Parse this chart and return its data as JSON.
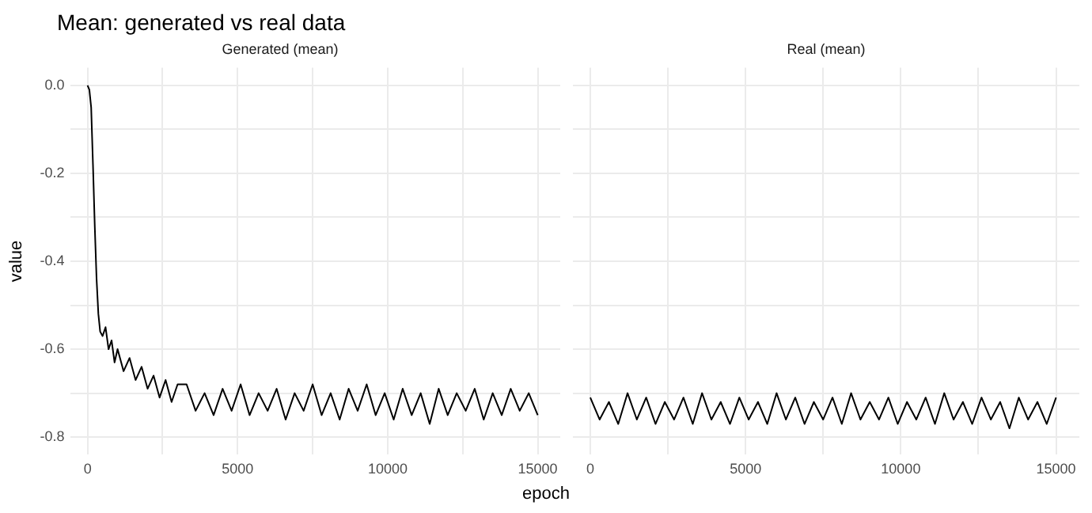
{
  "chart_data": [
    {
      "type": "line",
      "title": "Mean: generated vs real data",
      "subtitle": "Generated (mean)",
      "xlabel": "epoch",
      "ylabel": "value",
      "xlim": [
        -560,
        15750
      ],
      "ylim": [
        -0.84,
        0.04
      ],
      "xticks": [
        0,
        {
          "value": 2500,
          "label": null
        },
        5000,
        {
          "value": 7500,
          "label": null
        },
        10000,
        {
          "value": 12500,
          "label": null
        },
        15000
      ],
      "yticks": [
        {
          "value": -0.8,
          "label": "-0.8"
        },
        {
          "value": -0.7,
          "label": null
        },
        {
          "value": -0.6,
          "label": "-0.6"
        },
        {
          "value": -0.5,
          "label": null
        },
        {
          "value": -0.4,
          "label": "-0.4"
        },
        {
          "value": -0.3,
          "label": null
        },
        {
          "value": -0.2,
          "label": "-0.2"
        },
        {
          "value": -0.1,
          "label": null
        },
        {
          "value": 0,
          "label": "0.0"
        }
      ],
      "grid": true,
      "series": [
        {
          "color": "#000000",
          "x": [
            0,
            60,
            120,
            180,
            240,
            300,
            360,
            420,
            500,
            600,
            700,
            800,
            900,
            1000,
            1200,
            1400,
            1600,
            1800,
            2000,
            2200,
            2400,
            2600,
            2800,
            3000,
            3300,
            3600,
            3900,
            4200,
            4500,
            4800,
            5100,
            5400,
            5700,
            6000,
            6300,
            6600,
            6900,
            7200,
            7500,
            7800,
            8100,
            8400,
            8700,
            9000,
            9300,
            9600,
            9900,
            10200,
            10500,
            10800,
            11100,
            11400,
            11700,
            12000,
            12300,
            12600,
            12900,
            13200,
            13500,
            13800,
            14100,
            14400,
            14700,
            15000
          ],
          "values": [
            0.0,
            -0.01,
            -0.05,
            -0.18,
            -0.32,
            -0.44,
            -0.52,
            -0.56,
            -0.57,
            -0.55,
            -0.6,
            -0.58,
            -0.63,
            -0.6,
            -0.65,
            -0.62,
            -0.67,
            -0.64,
            -0.69,
            -0.66,
            -0.71,
            -0.67,
            -0.72,
            -0.68,
            -0.68,
            -0.74,
            -0.7,
            -0.75,
            -0.69,
            -0.74,
            -0.68,
            -0.75,
            -0.7,
            -0.74,
            -0.69,
            -0.76,
            -0.7,
            -0.74,
            -0.68,
            -0.75,
            -0.7,
            -0.76,
            -0.69,
            -0.74,
            -0.68,
            -0.75,
            -0.7,
            -0.76,
            -0.69,
            -0.75,
            -0.7,
            -0.77,
            -0.69,
            -0.75,
            -0.7,
            -0.74,
            -0.69,
            -0.76,
            -0.7,
            -0.75,
            -0.69,
            -0.74,
            -0.7,
            -0.75
          ]
        }
      ]
    },
    {
      "type": "line",
      "subtitle": "Real (mean)",
      "xlim": [
        -560,
        15750
      ],
      "ylim": [
        -0.84,
        0.04
      ],
      "tick_labels": "x",
      "xticks": [
        0,
        {
          "value": 2500,
          "label": null
        },
        5000,
        {
          "value": 7500,
          "label": null
        },
        10000,
        {
          "value": 12500,
          "label": null
        },
        15000
      ],
      "yticks": [
        {
          "value": -0.8,
          "label": null
        },
        {
          "value": -0.7,
          "label": null
        },
        {
          "value": -0.6,
          "label": null
        },
        {
          "value": -0.5,
          "label": null
        },
        {
          "value": -0.4,
          "label": null
        },
        {
          "value": -0.3,
          "label": null
        },
        {
          "value": -0.2,
          "label": null
        },
        {
          "value": -0.1,
          "label": null
        },
        {
          "value": 0,
          "label": null
        }
      ],
      "grid": true,
      "series": [
        {
          "color": "#000000",
          "x": [
            0,
            300,
            600,
            900,
            1200,
            1500,
            1800,
            2100,
            2400,
            2700,
            3000,
            3300,
            3600,
            3900,
            4200,
            4500,
            4800,
            5100,
            5400,
            5700,
            6000,
            6300,
            6600,
            6900,
            7200,
            7500,
            7800,
            8100,
            8400,
            8700,
            9000,
            9300,
            9600,
            9900,
            10200,
            10500,
            10800,
            11100,
            11400,
            11700,
            12000,
            12300,
            12600,
            12900,
            13200,
            13500,
            13800,
            14100,
            14400,
            14700,
            15000
          ],
          "values": [
            -0.71,
            -0.76,
            -0.72,
            -0.77,
            -0.7,
            -0.76,
            -0.71,
            -0.77,
            -0.72,
            -0.76,
            -0.71,
            -0.77,
            -0.7,
            -0.76,
            -0.72,
            -0.77,
            -0.71,
            -0.76,
            -0.72,
            -0.77,
            -0.7,
            -0.76,
            -0.71,
            -0.77,
            -0.72,
            -0.76,
            -0.71,
            -0.77,
            -0.7,
            -0.76,
            -0.72,
            -0.76,
            -0.71,
            -0.77,
            -0.72,
            -0.76,
            -0.71,
            -0.77,
            -0.7,
            -0.76,
            -0.72,
            -0.77,
            -0.71,
            -0.76,
            -0.72,
            -0.78,
            -0.71,
            -0.76,
            -0.72,
            -0.77,
            -0.71
          ]
        }
      ]
    }
  ]
}
